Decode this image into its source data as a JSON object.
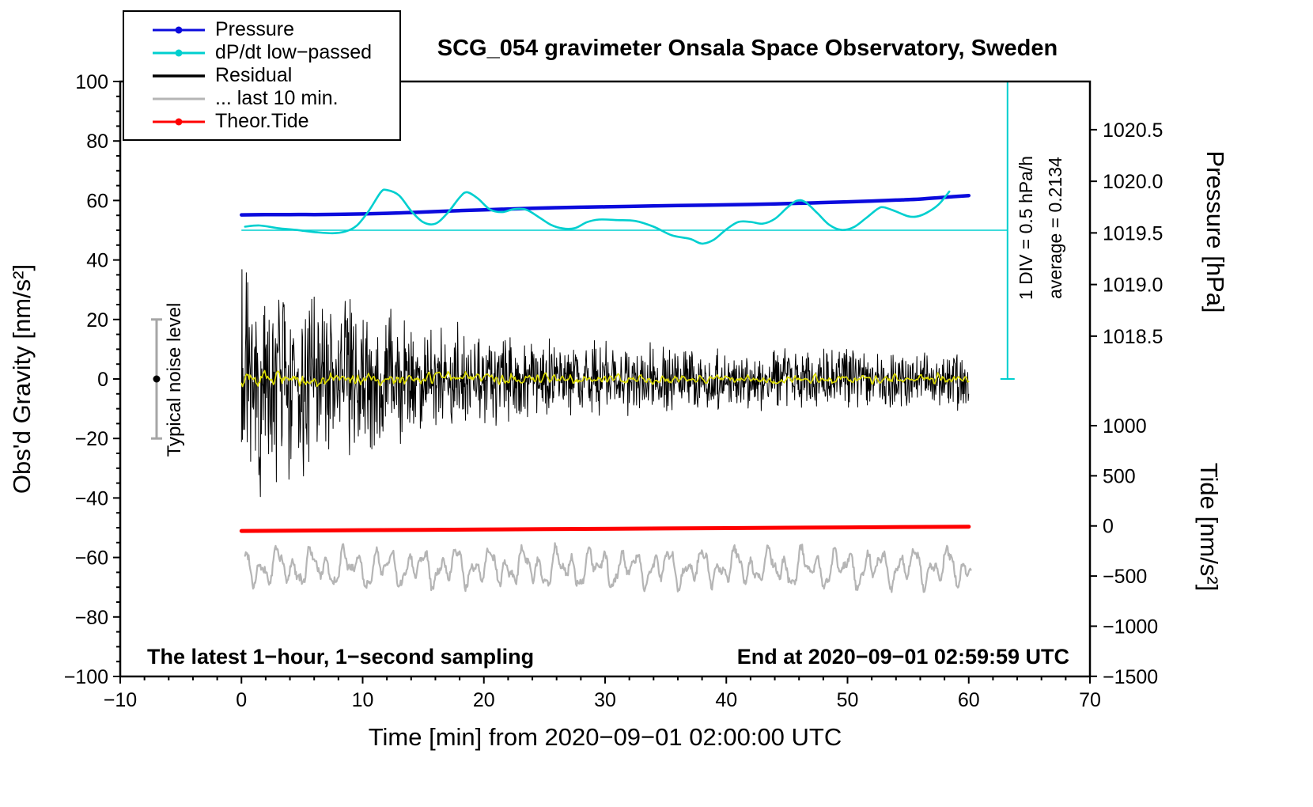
{
  "chart_data": {
    "type": "line",
    "title": "SCG_054 gravimeter Onsala Space Observatory, Sweden",
    "xlabel": "Time [min] from 2020−09−01 02:00:00 UTC",
    "ylabel_left": "Obs'd Gravity [nm/s²]",
    "ylabel_pressure": "Pressure [hPa]",
    "ylabel_tide": "Tide [nm/s²]",
    "annotations": {
      "noise_level": "Typical noise level",
      "div_scale": "1 DIV = 0.5 hPa/h",
      "average": "average = 0.2134",
      "sampling": "The latest 1−hour, 1−second sampling",
      "end_time": "End at 2020−09−01 02:59:59 UTC"
    },
    "legend": {
      "items": [
        {
          "name": "pressure",
          "label": "Pressure",
          "color": "#0b0bdd",
          "marker": true,
          "line_width": 3
        },
        {
          "name": "dpdt",
          "label": "dP/dt low−passed",
          "color": "#00cfcf",
          "marker": true,
          "line_width": 3
        },
        {
          "name": "residual",
          "label": "Residual",
          "color": "#000000",
          "marker": false,
          "line_width": 3.5
        },
        {
          "name": "last10",
          "label": "... last 10 min.",
          "color": "#b5b5b5",
          "marker": false,
          "line_width": 3
        },
        {
          "name": "theor_tide",
          "label": "Theor.Tide",
          "color": "#ff0000",
          "marker": true,
          "line_width": 3
        }
      ]
    },
    "axes": {
      "x": {
        "min": -10,
        "max": 70,
        "major_ticks": [
          -10,
          0,
          10,
          20,
          30,
          40,
          50,
          60,
          70
        ],
        "minor_step": 2
      },
      "gravity": {
        "min": -100,
        "max": 100,
        "major_ticks": [
          -100,
          -80,
          -60,
          -40,
          -20,
          0,
          20,
          40,
          60,
          80,
          100
        ],
        "minor_step": 5
      },
      "pressure": {
        "anchor_value": 1018.5,
        "anchor_gravity": 14.4,
        "gravity_per_hPa": 34.7,
        "ticks": [
          1018.5,
          1019.0,
          1019.5,
          1020.0,
          1020.5
        ]
      },
      "tide": {
        "anchor_gravity": -49.4,
        "gravity_per_unit": 0.0337,
        "ticks": [
          -1500,
          -1000,
          -500,
          0,
          500,
          1000
        ]
      }
    },
    "refline": {
      "axis": "left",
      "y": 50,
      "x_start": 0,
      "x_end": 63.2,
      "color": "#00cfcf",
      "width": 1.6
    },
    "scalebar": {
      "x": 63.2,
      "top_gravity": 100,
      "bottom_gravity": 0,
      "cap_halfwidth": 9,
      "color": "#00cfcf",
      "width": 2
    },
    "noise_bar": {
      "x": -7,
      "from": -20,
      "to": 20,
      "dot_at": 0,
      "bar_color": "#a6a6a6",
      "dot_color": "#000000"
    },
    "series": {
      "pressure": {
        "axis": "pressure",
        "color": "#0b0bdd",
        "width": 4.5,
        "draw": "pairs",
        "smooth": true,
        "pairs": [
          [
            0,
            1019.675
          ],
          [
            2,
            1019.677
          ],
          [
            4,
            1019.678
          ],
          [
            6,
            1019.678
          ],
          [
            8,
            1019.68
          ],
          [
            10,
            1019.684
          ],
          [
            12,
            1019.69
          ],
          [
            14,
            1019.698
          ],
          [
            16,
            1019.707
          ],
          [
            18,
            1019.716
          ],
          [
            20,
            1019.724
          ],
          [
            22,
            1019.731
          ],
          [
            24,
            1019.738
          ],
          [
            26,
            1019.744
          ],
          [
            28,
            1019.749
          ],
          [
            30,
            1019.753
          ],
          [
            32,
            1019.757
          ],
          [
            34,
            1019.761
          ],
          [
            36,
            1019.765
          ],
          [
            38,
            1019.768
          ],
          [
            40,
            1019.772
          ],
          [
            42,
            1019.776
          ],
          [
            44,
            1019.781
          ],
          [
            46,
            1019.787
          ],
          [
            48,
            1019.794
          ],
          [
            50,
            1019.801
          ],
          [
            52,
            1019.809
          ],
          [
            54,
            1019.818
          ],
          [
            56,
            1019.828
          ],
          [
            58,
            1019.845
          ],
          [
            60,
            1019.862
          ]
        ]
      },
      "dpdt": {
        "axis": "left",
        "color": "#00cfcf",
        "width": 2.6,
        "draw": "pairs",
        "smooth": true,
        "pairs": [
          [
            0.3,
            51.2
          ],
          [
            1.5,
            51.6
          ],
          [
            3,
            50.7
          ],
          [
            4.5,
            50.1
          ],
          [
            6,
            49.4
          ],
          [
            7.5,
            49.0
          ],
          [
            8.5,
            49.5
          ],
          [
            9.5,
            51.5
          ],
          [
            10.5,
            56.5
          ],
          [
            11.5,
            62.8
          ],
          [
            12,
            63.5
          ],
          [
            13,
            61.7
          ],
          [
            14,
            56.5
          ],
          [
            15,
            52.7
          ],
          [
            16,
            52.2
          ],
          [
            17,
            55.8
          ],
          [
            18,
            61.0
          ],
          [
            18.6,
            62.8
          ],
          [
            19.5,
            60.7
          ],
          [
            20.5,
            57.0
          ],
          [
            21.5,
            56.1
          ],
          [
            22.5,
            57.1
          ],
          [
            23.5,
            56.9
          ],
          [
            24.5,
            54.5
          ],
          [
            25.5,
            51.9
          ],
          [
            26.5,
            50.6
          ],
          [
            27.5,
            50.7
          ],
          [
            28.5,
            52.7
          ],
          [
            29.5,
            53.6
          ],
          [
            31,
            53.4
          ],
          [
            32.5,
            53.1
          ],
          [
            34,
            51.2
          ],
          [
            35.5,
            48.3
          ],
          [
            37,
            47.1
          ],
          [
            38,
            45.5
          ],
          [
            39,
            46.9
          ],
          [
            40,
            50.3
          ],
          [
            41,
            52.8
          ],
          [
            42,
            52.8
          ],
          [
            43,
            52.2
          ],
          [
            44,
            53.8
          ],
          [
            45,
            57.5
          ],
          [
            45.8,
            59.9
          ],
          [
            46.5,
            59.5
          ],
          [
            47.5,
            55.8
          ],
          [
            48.5,
            51.8
          ],
          [
            49.5,
            50.1
          ],
          [
            50.5,
            51.0
          ],
          [
            51.5,
            54.0
          ],
          [
            52.5,
            57.2
          ],
          [
            53,
            57.7
          ],
          [
            54,
            56.3
          ],
          [
            55,
            54.7
          ],
          [
            55.7,
            54.6
          ],
          [
            56.5,
            55.8
          ],
          [
            57.5,
            58.6
          ],
          [
            58.4,
            63.0
          ]
        ]
      },
      "residual": {
        "axis": "left",
        "color": "#000000",
        "width": 1,
        "draw": "noise",
        "gen": {
          "seed": 20200901,
          "start": 0,
          "end": 60,
          "step": 0.04,
          "center": 0,
          "env_a": 26,
          "env_tau": 12,
          "env_c": 7,
          "gain": 1.5,
          "smooth": 1
        }
      },
      "residual_filtered": {
        "axis": "left",
        "color": "#dede00",
        "width": 1.6,
        "draw": "noise",
        "gen": {
          "seed": 777,
          "start": 0,
          "end": 60,
          "step": 0.08,
          "center": 0,
          "env_a": 2.2,
          "env_tau": 18,
          "env_c": 2.2,
          "gain": 1.2,
          "smooth": 3
        }
      },
      "last10": {
        "axis": "left",
        "color": "#b5b5b5",
        "width": 2.2,
        "draw": "osc",
        "gen": {
          "seed": 99,
          "start": 0.3,
          "end": 60.2,
          "step": 0.06,
          "center": -63.5,
          "components": [
            [
              3.8,
              1.35,
              0.3
            ],
            [
              2.8,
              2.9,
              1.2
            ],
            [
              1.8,
              0.7,
              2.0
            ]
          ],
          "noise": 1.3
        }
      },
      "theor_tide": {
        "axis": "tide",
        "color": "#ff0000",
        "width": 5,
        "draw": "pairs",
        "smooth": false,
        "pairs": [
          [
            0,
            -50
          ],
          [
            5,
            -46
          ],
          [
            10,
            -42.5
          ],
          [
            15,
            -39
          ],
          [
            20,
            -35.5
          ],
          [
            25,
            -32
          ],
          [
            30,
            -28.5
          ],
          [
            35,
            -25
          ],
          [
            40,
            -21.5
          ],
          [
            45,
            -18
          ],
          [
            50,
            -14.5
          ],
          [
            55,
            -11
          ],
          [
            60,
            -7.5
          ]
        ]
      }
    }
  }
}
